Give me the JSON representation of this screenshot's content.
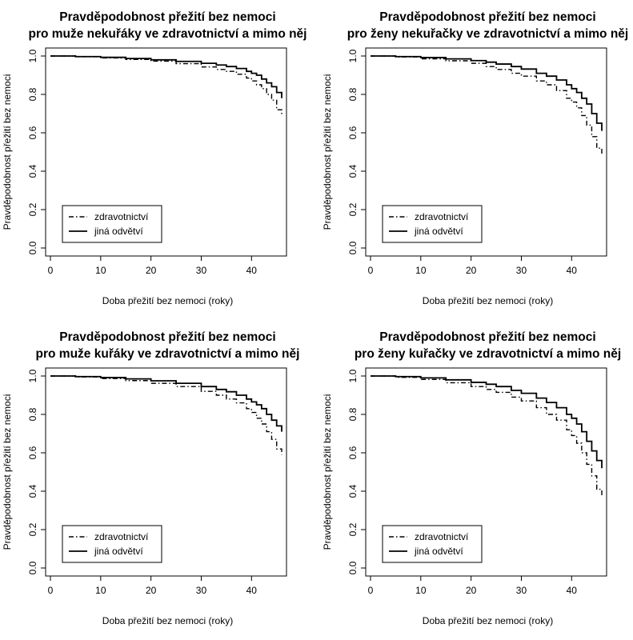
{
  "chart_data": [
    {
      "type": "line",
      "title": "Pravděpodobnost přežití bez nemoci",
      "subtitle": "pro muže nekuřáky ve zdravotnictví a mimo něj",
      "xlabel": "Doba přežití bez nemoci (roky)",
      "ylabel": "Pravděpodobnost přežití bez nemoci",
      "xlim": [
        0,
        46
      ],
      "ylim": [
        0,
        1
      ],
      "xticks": [
        "0",
        "10",
        "20",
        "30",
        "40"
      ],
      "yticks": [
        "0.0",
        "0.2",
        "0.4",
        "0.6",
        "0.8",
        "1.0"
      ],
      "legend": "bottom-left",
      "series": [
        {
          "name": "zdravotnictví",
          "style": "dashdot",
          "color": "#000000",
          "x": [
            0,
            5,
            10,
            15,
            20,
            25,
            30,
            33,
            35,
            37,
            39,
            40,
            41,
            42,
            43,
            44,
            45,
            46
          ],
          "y": [
            1.0,
            0.996,
            0.99,
            0.982,
            0.973,
            0.96,
            0.943,
            0.93,
            0.92,
            0.905,
            0.885,
            0.87,
            0.85,
            0.83,
            0.8,
            0.77,
            0.72,
            0.69
          ]
        },
        {
          "name": "jiná odvětví",
          "style": "solid",
          "color": "#000000",
          "x": [
            0,
            5,
            10,
            15,
            20,
            25,
            30,
            33,
            35,
            37,
            39,
            40,
            41,
            42,
            43,
            44,
            45,
            46
          ],
          "y": [
            1.0,
            0.997,
            0.993,
            0.987,
            0.98,
            0.972,
            0.962,
            0.953,
            0.945,
            0.935,
            0.92,
            0.91,
            0.9,
            0.88,
            0.86,
            0.84,
            0.81,
            0.78
          ]
        }
      ]
    },
    {
      "type": "line",
      "title": "Pravděpodobnost přežití bez nemoci",
      "subtitle": "pro ženy nekuřačky ve zdravotnictví a mimo něj",
      "xlabel": "Doba přežití bez nemoci (roky)",
      "ylabel": "Pravděpodobnost přežití bez nemoci",
      "xlim": [
        0,
        46
      ],
      "ylim": [
        0,
        1
      ],
      "xticks": [
        "0",
        "10",
        "20",
        "30",
        "40"
      ],
      "yticks": [
        "0.0",
        "0.2",
        "0.4",
        "0.6",
        "0.8",
        "1.0"
      ],
      "legend": "bottom-left",
      "series": [
        {
          "name": "zdravotnictví",
          "style": "dashdot",
          "color": "#000000",
          "x": [
            0,
            5,
            10,
            15,
            20,
            23,
            25,
            28,
            30,
            33,
            35,
            37,
            39,
            40,
            41,
            42,
            43,
            44,
            45,
            46
          ],
          "y": [
            1.0,
            0.995,
            0.985,
            0.975,
            0.962,
            0.945,
            0.93,
            0.91,
            0.895,
            0.87,
            0.85,
            0.82,
            0.78,
            0.76,
            0.73,
            0.69,
            0.64,
            0.58,
            0.52,
            0.49
          ]
        },
        {
          "name": "jiná odvětví",
          "style": "solid",
          "color": "#000000",
          "x": [
            0,
            5,
            10,
            15,
            20,
            23,
            25,
            28,
            30,
            33,
            35,
            37,
            39,
            40,
            41,
            42,
            43,
            44,
            45,
            46
          ],
          "y": [
            1.0,
            0.997,
            0.992,
            0.985,
            0.976,
            0.968,
            0.958,
            0.945,
            0.932,
            0.91,
            0.895,
            0.875,
            0.85,
            0.83,
            0.81,
            0.78,
            0.75,
            0.7,
            0.65,
            0.61
          ]
        }
      ]
    },
    {
      "type": "line",
      "title": "Pravděpodobnost přežití bez nemoci",
      "subtitle": "pro muže kuřáky ve zdravotnictví a mimo něj",
      "xlabel": "Doba přežití bez nemoci (roky)",
      "ylabel": "Pravděpodobnost přežití bez nemoci",
      "xlim": [
        0,
        46
      ],
      "ylim": [
        0,
        1
      ],
      "xticks": [
        "0",
        "10",
        "20",
        "30",
        "40"
      ],
      "yticks": [
        "0.0",
        "0.2",
        "0.4",
        "0.6",
        "0.8",
        "1.0"
      ],
      "legend": "bottom-left",
      "series": [
        {
          "name": "zdravotnictví",
          "style": "dashdot",
          "color": "#000000",
          "x": [
            0,
            5,
            10,
            15,
            20,
            25,
            30,
            33,
            35,
            37,
            39,
            40,
            41,
            42,
            43,
            44,
            45,
            46
          ],
          "y": [
            1.0,
            0.995,
            0.987,
            0.976,
            0.962,
            0.945,
            0.92,
            0.9,
            0.88,
            0.86,
            0.83,
            0.81,
            0.78,
            0.75,
            0.71,
            0.67,
            0.62,
            0.59
          ]
        },
        {
          "name": "jiná odvětví",
          "style": "solid",
          "color": "#000000",
          "x": [
            0,
            5,
            10,
            15,
            20,
            25,
            30,
            33,
            35,
            37,
            39,
            40,
            41,
            42,
            43,
            44,
            45,
            46
          ],
          "y": [
            1.0,
            0.997,
            0.992,
            0.985,
            0.975,
            0.962,
            0.945,
            0.93,
            0.918,
            0.9,
            0.88,
            0.865,
            0.85,
            0.83,
            0.8,
            0.77,
            0.74,
            0.71
          ]
        }
      ]
    },
    {
      "type": "line",
      "title": "Pravděpodobnost přežití bez nemoci",
      "subtitle": "pro ženy kuřačky ve zdravotnictví a mimo něj",
      "xlabel": "Doba přežití bez nemoci (roky)",
      "ylabel": "Pravděpodobnost přežití bez nemoci",
      "xlim": [
        0,
        46
      ],
      "ylim": [
        0,
        1
      ],
      "xticks": [
        "0",
        "10",
        "20",
        "30",
        "40"
      ],
      "yticks": [
        "0.0",
        "0.2",
        "0.4",
        "0.6",
        "0.8",
        "1.0"
      ],
      "legend": "bottom-left",
      "series": [
        {
          "name": "zdravotnictví",
          "style": "dashdot",
          "color": "#000000",
          "x": [
            0,
            5,
            10,
            15,
            20,
            23,
            25,
            28,
            30,
            33,
            35,
            37,
            39,
            40,
            41,
            42,
            43,
            44,
            45,
            46
          ],
          "y": [
            1.0,
            0.993,
            0.982,
            0.965,
            0.945,
            0.93,
            0.915,
            0.89,
            0.87,
            0.835,
            0.8,
            0.77,
            0.72,
            0.69,
            0.65,
            0.6,
            0.54,
            0.48,
            0.41,
            0.37
          ]
        },
        {
          "name": "jiná odvětví",
          "style": "solid",
          "color": "#000000",
          "x": [
            0,
            5,
            10,
            15,
            20,
            23,
            25,
            28,
            30,
            33,
            35,
            37,
            39,
            40,
            41,
            42,
            43,
            44,
            45,
            46
          ],
          "y": [
            1.0,
            0.997,
            0.99,
            0.98,
            0.967,
            0.957,
            0.945,
            0.925,
            0.91,
            0.885,
            0.862,
            0.835,
            0.8,
            0.78,
            0.75,
            0.71,
            0.66,
            0.61,
            0.56,
            0.52
          ]
        }
      ]
    }
  ]
}
